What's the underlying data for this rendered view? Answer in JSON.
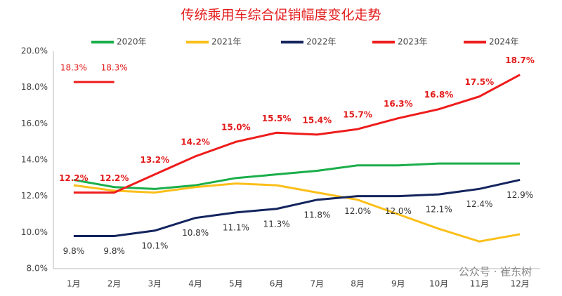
{
  "chart_data": {
    "type": "line",
    "title": "传统乘用车综合促销幅度变化走势",
    "categories": [
      "1月",
      "2月",
      "3月",
      "4月",
      "5月",
      "6月",
      "7月",
      "8月",
      "9月",
      "10月",
      "11月",
      "12月"
    ],
    "ylim": [
      8,
      20
    ],
    "yticks": [
      {
        "value": 8,
        "label": "8.0%"
      },
      {
        "value": 10,
        "label": "10.0%"
      },
      {
        "value": 12,
        "label": "12.0%"
      },
      {
        "value": 14,
        "label": "14.0%"
      },
      {
        "value": 16,
        "label": "16.0%"
      },
      {
        "value": 18,
        "label": "18.0%"
      },
      {
        "value": 20,
        "label": "20.0%"
      }
    ],
    "grid": false,
    "watermark": "公众号 · 崔东树",
    "series": [
      {
        "name": "2020年",
        "color": "#1aae4a",
        "values": [
          12.9,
          12.5,
          12.4,
          12.6,
          13.0,
          13.2,
          13.4,
          13.7,
          13.7,
          13.8,
          13.8,
          13.8
        ]
      },
      {
        "name": "2021年",
        "color": "#fbbf1a",
        "values": [
          12.6,
          12.3,
          12.2,
          12.5,
          12.7,
          12.6,
          12.2,
          11.8,
          11.0,
          10.2,
          9.5,
          9.9
        ]
      },
      {
        "name": "2022年",
        "color": "#14245e",
        "values": [
          9.8,
          9.8,
          10.1,
          10.8,
          11.1,
          11.3,
          11.8,
          12.0,
          12.0,
          12.1,
          12.4,
          12.9
        ],
        "value_labels": [
          "9.8%",
          "9.8%",
          "10.1%",
          "10.8%",
          "11.1%",
          "11.3%",
          "11.8%",
          "12.0%",
          "12.0%",
          "12.1%",
          "12.4%",
          "12.9%"
        ]
      },
      {
        "name": "2023年",
        "color": "#ee1c1c",
        "values": [
          12.2,
          12.2,
          13.2,
          14.2,
          15.0,
          15.5,
          15.4,
          15.7,
          16.3,
          16.8,
          17.5,
          18.7
        ],
        "value_labels": [
          "12.2%",
          "12.2%",
          "13.2%",
          "14.2%",
          "15.0%",
          "15.5%",
          "15.4%",
          "15.7%",
          "16.3%",
          "16.8%",
          "17.5%",
          "18.7%"
        ]
      },
      {
        "name": "2024年",
        "color": "#ee1c1c",
        "values": [
          18.3,
          18.3,
          null,
          null,
          null,
          null,
          null,
          null,
          null,
          null,
          null,
          null
        ],
        "value_labels": [
          "18.3%",
          "18.3%",
          null,
          null,
          null,
          null,
          null,
          null,
          null,
          null,
          null,
          null
        ]
      }
    ]
  }
}
